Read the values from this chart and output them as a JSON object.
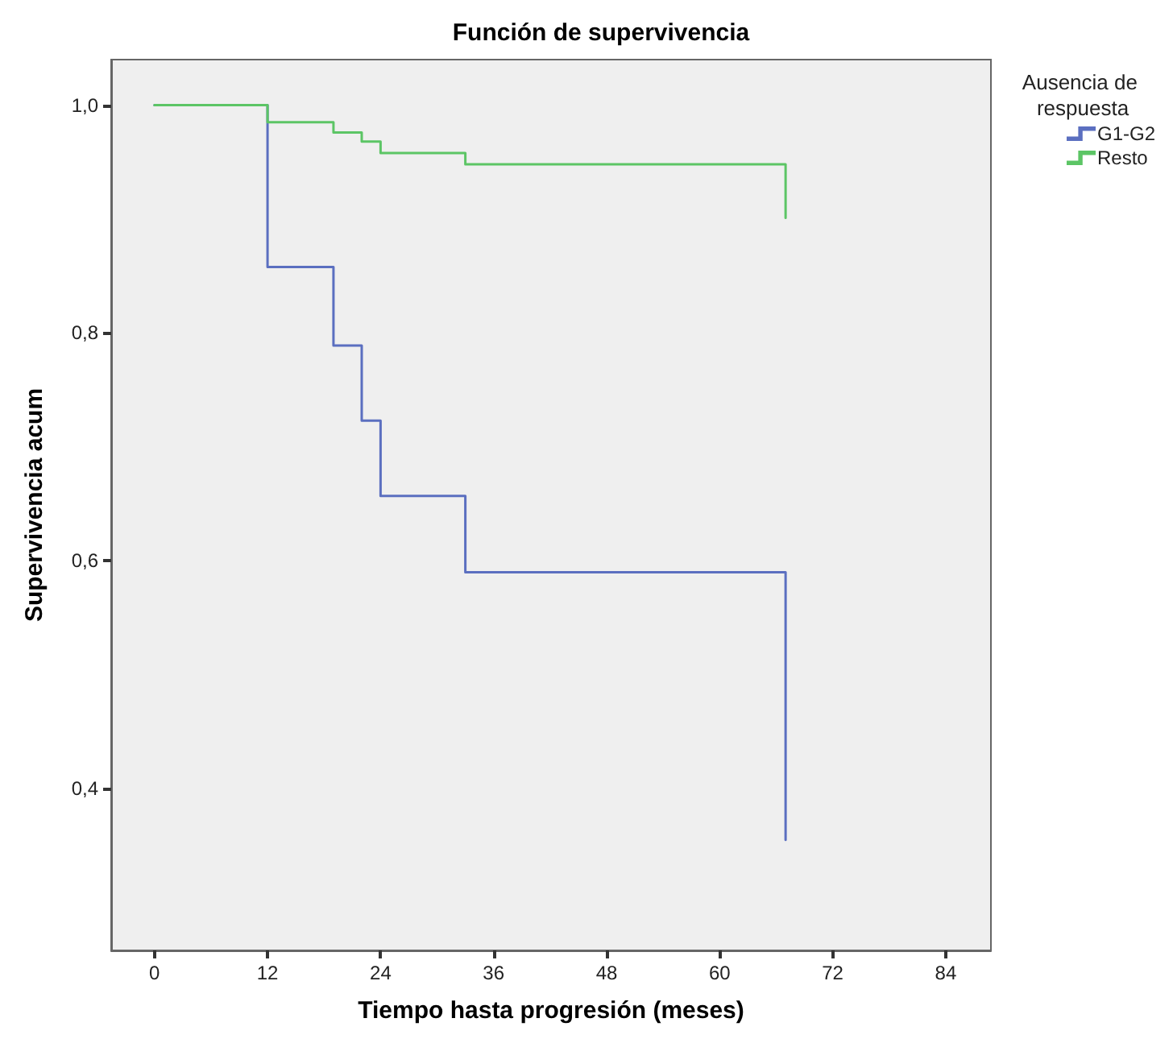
{
  "chart_data": {
    "type": "step",
    "title": "Función de supervivencia",
    "xlabel": "Tiempo hasta progresión (meses)",
    "ylabel": "Supervivencia acum",
    "legend_title": "Ausencia de respuesta",
    "series": [
      {
        "name": "G1-G2",
        "color": "#5b6fc0",
        "x": [
          0,
          12,
          19,
          22,
          24,
          33,
          67
        ],
        "values": [
          1.0,
          0.858,
          0.789,
          0.723,
          0.657,
          0.59,
          0.355
        ]
      },
      {
        "name": "Resto",
        "color": "#5cc565",
        "x": [
          0,
          12,
          19,
          22,
          24,
          33,
          67
        ],
        "values": [
          1.0,
          0.985,
          0.976,
          0.968,
          0.958,
          0.948,
          0.901
        ]
      }
    ],
    "xlim": [
      -4.6,
      88.8
    ],
    "xticks": [
      0,
      12,
      24,
      36,
      48,
      60,
      72,
      84
    ],
    "ylim": [
      0.258,
      1.04
    ],
    "yticks": [
      {
        "value": 0.4,
        "label": "0,4"
      },
      {
        "value": 0.6,
        "label": "0,6"
      },
      {
        "value": 0.8,
        "label": "0,8"
      },
      {
        "value": 1.0,
        "label": "1,0"
      }
    ],
    "grid": false,
    "legend": "top right",
    "marker": "none",
    "line_style": "solid"
  }
}
